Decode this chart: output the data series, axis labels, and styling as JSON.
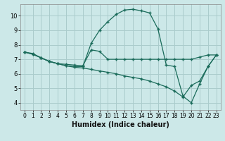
{
  "xlabel": "Humidex (Indice chaleur)",
  "bg_color": "#cce8e8",
  "grid_color": "#aacccc",
  "line_color": "#1a6b5a",
  "xlim": [
    -0.5,
    23.5
  ],
  "ylim": [
    3.5,
    10.8
  ],
  "xticks": [
    0,
    1,
    2,
    3,
    4,
    5,
    6,
    7,
    8,
    9,
    10,
    11,
    12,
    13,
    14,
    15,
    16,
    17,
    18,
    19,
    20,
    21,
    22,
    23
  ],
  "yticks": [
    4,
    5,
    6,
    7,
    8,
    9,
    10
  ],
  "series": [
    {
      "x": [
        0,
        1,
        2,
        3,
        4,
        5,
        6,
        7,
        8,
        9,
        10,
        11,
        12,
        13,
        14,
        15,
        16,
        17,
        18,
        19,
        20,
        21,
        22,
        23
      ],
      "y": [
        7.5,
        7.4,
        7.1,
        6.85,
        6.7,
        6.65,
        6.6,
        6.55,
        7.65,
        7.55,
        7.0,
        7.0,
        7.0,
        7.0,
        7.0,
        7.0,
        7.0,
        7.0,
        7.0,
        7.0,
        7.0,
        7.15,
        7.3,
        7.3
      ]
    },
    {
      "x": [
        0,
        1,
        2,
        3,
        4,
        5,
        6,
        7,
        8,
        9,
        10,
        11,
        12,
        13,
        14,
        15,
        16,
        17,
        18,
        19,
        20,
        21,
        22,
        23
      ],
      "y": [
        7.5,
        7.35,
        7.1,
        6.85,
        6.7,
        6.55,
        6.45,
        6.4,
        6.3,
        6.2,
        6.1,
        6.0,
        5.85,
        5.75,
        5.65,
        5.5,
        5.3,
        5.1,
        4.8,
        4.4,
        5.2,
        5.5,
        6.5,
        7.3
      ]
    },
    {
      "x": [
        0,
        1,
        2,
        3,
        4,
        5,
        6,
        7,
        8,
        9,
        10,
        11,
        12,
        13,
        14,
        15,
        16,
        17,
        18,
        19,
        20,
        21,
        22,
        23
      ],
      "y": [
        7.5,
        7.35,
        7.1,
        6.85,
        6.7,
        6.55,
        6.5,
        6.5,
        8.1,
        9.0,
        9.6,
        10.1,
        10.4,
        10.45,
        10.35,
        10.2,
        9.1,
        6.6,
        6.5,
        4.45,
        4.0,
        5.3,
        6.5,
        7.3
      ]
    }
  ]
}
